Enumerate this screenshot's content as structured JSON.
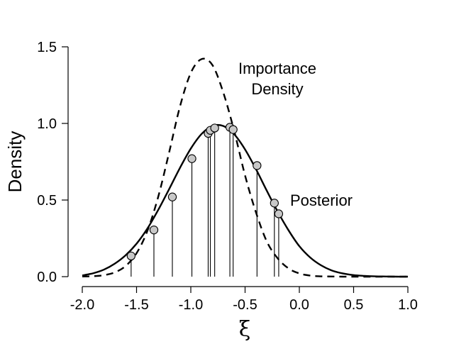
{
  "chart_data": {
    "type": "line",
    "title": "",
    "xlabel": "ξ",
    "ylabel": "Density",
    "xlim": [
      -2.0,
      1.0
    ],
    "ylim": [
      0.0,
      1.5
    ],
    "xticks": [
      "-2.0",
      "-1.5",
      "-1.0",
      "-0.5",
      "0.0",
      "0.5",
      "1.0"
    ],
    "yticks": [
      "0.0",
      "0.5",
      "1.0",
      "1.5"
    ],
    "grid": false,
    "series": [
      {
        "name": "Posterior",
        "style": "solid",
        "color": "#000000",
        "x": [
          -2.0,
          -1.9,
          -1.8,
          -1.7,
          -1.6,
          -1.5,
          -1.4,
          -1.3,
          -1.2,
          -1.1,
          -1.0,
          -0.9,
          -0.8,
          -0.7,
          -0.6,
          -0.5,
          -0.4,
          -0.3,
          -0.2,
          -0.1,
          0.0,
          0.1,
          0.2,
          0.3,
          0.4,
          0.5,
          0.6,
          0.7,
          0.8,
          0.9,
          1.0
        ],
        "values": [
          0.008,
          0.022,
          0.046,
          0.085,
          0.14,
          0.215,
          0.314,
          0.436,
          0.571,
          0.71,
          0.836,
          0.932,
          0.984,
          0.983,
          0.929,
          0.83,
          0.702,
          0.561,
          0.425,
          0.303,
          0.199,
          0.125,
          0.074,
          0.04,
          0.021,
          0.01,
          0.005,
          0.002,
          0.001,
          0.0,
          0.0
        ]
      },
      {
        "name": "Importance Density",
        "style": "dashed",
        "color": "#000000",
        "x": [
          -2.0,
          -1.9,
          -1.8,
          -1.7,
          -1.6,
          -1.5,
          -1.4,
          -1.3,
          -1.2,
          -1.1,
          -1.0,
          -0.9,
          -0.8,
          -0.7,
          -0.6,
          -0.5,
          -0.4,
          -0.3,
          -0.2,
          -0.1,
          0.0,
          0.1,
          0.2,
          0.3,
          0.4,
          0.5,
          0.6,
          0.7,
          0.8,
          0.9,
          1.0
        ],
        "values": [
          0.001,
          0.003,
          0.01,
          0.028,
          0.07,
          0.153,
          0.299,
          0.522,
          0.81,
          1.11,
          1.33,
          1.42,
          1.38,
          1.2,
          0.95,
          0.66,
          0.42,
          0.23,
          0.12,
          0.054,
          0.021,
          0.007,
          0.002,
          0.001,
          0.0,
          0.0,
          0.0,
          0.0,
          0.0,
          0.0,
          0.0
        ]
      }
    ],
    "samples": {
      "name": "Posterior samples",
      "x": [
        -1.55,
        -1.34,
        -1.17,
        -0.99,
        -0.84,
        -0.82,
        -0.78,
        -0.64,
        -0.61,
        -0.39,
        -0.23,
        -0.19
      ],
      "values": [
        0.135,
        0.305,
        0.52,
        0.77,
        0.935,
        0.955,
        0.97,
        0.975,
        0.96,
        0.725,
        0.48,
        0.41
      ]
    },
    "annotations": {
      "importance_line1": "Importance",
      "importance_line2": "Density",
      "posterior": "Posterior"
    },
    "colors": {
      "marker_fill": "#c8c8c8",
      "line": "#000000"
    }
  }
}
